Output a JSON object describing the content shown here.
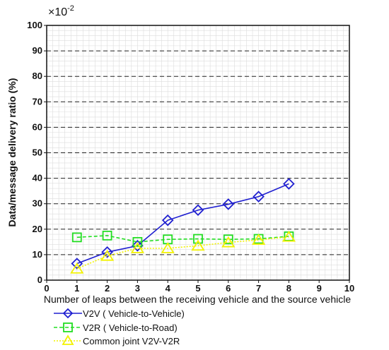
{
  "chart_data": {
    "type": "line",
    "multiplier_label": "×10",
    "multiplier_exponent": "-2",
    "xlabel": "Number of leaps between the receiving vehicle and the source vehicle",
    "ylabel": "Data/message delivery ratio (%)",
    "xlim": [
      0,
      10
    ],
    "ylim": [
      0,
      100
    ],
    "x_ticks": [
      0,
      1,
      2,
      3,
      4,
      5,
      6,
      7,
      8,
      9,
      10
    ],
    "y_ticks": [
      0,
      10,
      20,
      30,
      40,
      50,
      60,
      70,
      80,
      90,
      100
    ],
    "grid": true,
    "legend_position": "bottom-left",
    "series": [
      {
        "name": "V2V ( Vehicle-to-Vehicle)",
        "color": "#1f1fd0",
        "marker": "diamond",
        "line": "solid",
        "x": [
          1,
          2,
          3,
          4,
          5,
          6,
          7,
          8
        ],
        "y": [
          6.5,
          11,
          13.5,
          23.5,
          27.5,
          29.8,
          32.8,
          37.8
        ]
      },
      {
        "name": "V2R ( Vehicle-to-Road)",
        "color": "#22dd22",
        "marker": "square",
        "line": "dashed",
        "x": [
          1,
          2,
          3,
          4,
          5,
          6,
          7,
          8
        ],
        "y": [
          16.8,
          17.5,
          15,
          16,
          16.2,
          16,
          16.2,
          17.2
        ]
      },
      {
        "name": "Common joint V2V-V2R",
        "color": "#f2f200",
        "marker": "triangle",
        "line": "dotted",
        "x": [
          1,
          2,
          3,
          4,
          5,
          6,
          7,
          8
        ],
        "y": [
          4.5,
          9.5,
          12.5,
          12.5,
          13.5,
          14.8,
          15.8,
          17
        ]
      }
    ]
  }
}
